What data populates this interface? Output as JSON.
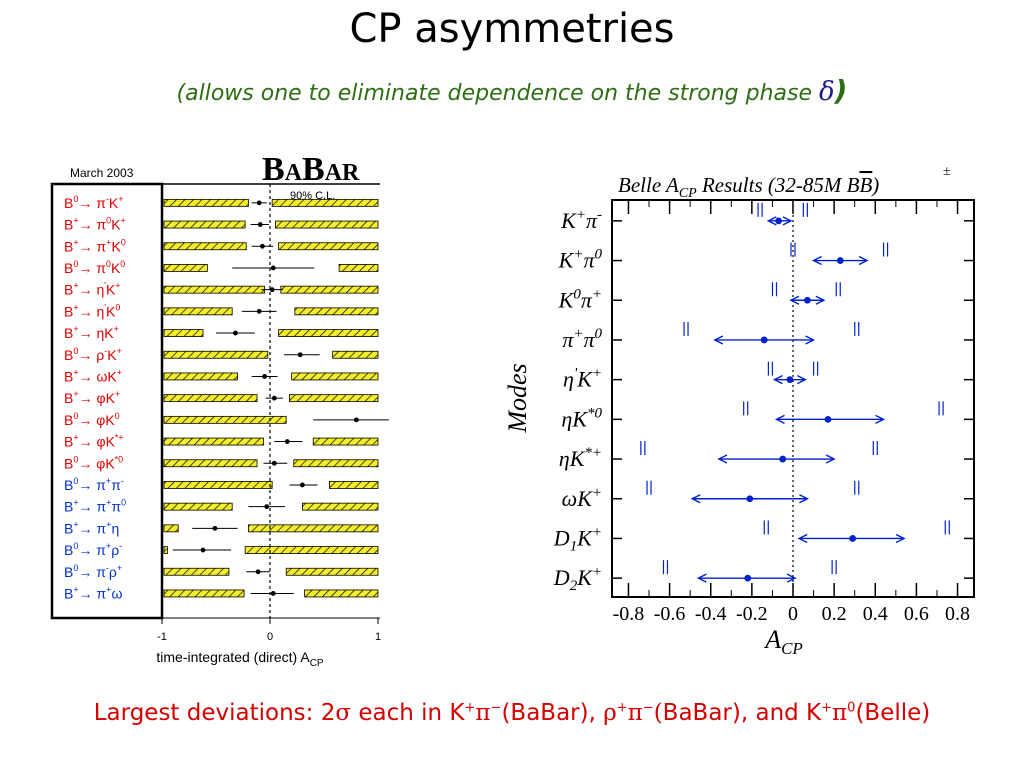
{
  "slide": {
    "title": "CP asymmetries",
    "subtitle_text": "(allows one to eliminate dependence on the strong phase ",
    "subtitle_symbol": "δ",
    "subtitle_close": ")",
    "footer": {
      "p1": "Largest deviations: 2",
      "sigma": "σ",
      "p2": " each in K",
      "p3": "(BaBar), ",
      "p4": "BaBar), and K",
      "p5": "(Belle)"
    }
  },
  "chart_data": [
    {
      "type": "scatter",
      "title": "",
      "header": "March 2003",
      "logo": "BABAR",
      "cl_label": "90% C.L.",
      "xlabel": "time-integrated (direct) A",
      "xlabel_sub": "CP",
      "xlim": [
        -1,
        1
      ],
      "xticks": [
        "-1",
        "0",
        "1"
      ],
      "modes": [
        {
          "pre": "B",
          "sup1": "0",
          "mid": "→ π",
          "sup2": "-",
          "post": "K",
          "sup3": "+",
          "color": "#e00000",
          "value": -0.1,
          "lo": -0.17,
          "hi": -0.03,
          "band_lo": -0.2,
          "band_hi": 0.02
        },
        {
          "pre": "B",
          "sup1": "+",
          "mid": "→ π",
          "sup2": "0",
          "post": "K",
          "sup3": "+",
          "color": "#e00000",
          "value": -0.09,
          "lo": -0.18,
          "hi": -0.01,
          "band_lo": -0.23,
          "band_hi": 0.05
        },
        {
          "pre": "B",
          "sup1": "+",
          "mid": "→ π",
          "sup2": "+",
          "post": "K",
          "sup3": "0",
          "color": "#e00000",
          "value": -0.07,
          "lo": -0.17,
          "hi": 0.03,
          "band_lo": -0.22,
          "band_hi": 0.08
        },
        {
          "pre": "B",
          "sup1": "0",
          "mid": "→ π",
          "sup2": "0",
          "post": "K",
          "sup3": "0",
          "color": "#e00000",
          "value": 0.03,
          "lo": -0.35,
          "hi": 0.41,
          "band_lo": -0.58,
          "band_hi": 0.64
        },
        {
          "pre": "B",
          "sup1": "+",
          "mid": "→ η",
          "sup2": "'",
          "post": "K",
          "sup3": "+",
          "color": "#e00000",
          "value": 0.02,
          "lo": -0.08,
          "hi": 0.12,
          "band_lo": -0.05,
          "band_hi": 0.1
        },
        {
          "pre": "B",
          "sup1": "+",
          "mid": "→ η",
          "sup2": "'",
          "post": "K",
          "sup3": "0",
          "color": "#e00000",
          "value": -0.1,
          "lo": -0.26,
          "hi": 0.06,
          "band_lo": -0.35,
          "band_hi": 0.23
        },
        {
          "pre": "B",
          "sup1": "+",
          "mid": "→ ηK",
          "sup2": "",
          "post": "",
          "sup3": "+",
          "color": "#e00000",
          "value": -0.32,
          "lo": -0.5,
          "hi": -0.14,
          "band_lo": -0.62,
          "band_hi": 0.08
        },
        {
          "pre": "B",
          "sup1": "0",
          "mid": "→ ρ",
          "sup2": "-",
          "post": "K",
          "sup3": "+",
          "color": "#e00000",
          "value": 0.28,
          "lo": 0.13,
          "hi": 0.46,
          "band_lo": -0.02,
          "band_hi": 0.58
        },
        {
          "pre": "B",
          "sup1": "+",
          "mid": "→ ωK",
          "sup2": "",
          "post": "",
          "sup3": "+",
          "color": "#e00000",
          "value": -0.05,
          "lo": -0.17,
          "hi": 0.07,
          "band_lo": -0.3,
          "band_hi": 0.2
        },
        {
          "pre": "B",
          "sup1": "+",
          "mid": "→ φK",
          "sup2": "",
          "post": "",
          "sup3": "+",
          "color": "#e00000",
          "value": 0.04,
          "lo": -0.04,
          "hi": 0.12,
          "band_lo": -0.12,
          "band_hi": 0.18
        },
        {
          "pre": "B",
          "sup1": "0",
          "mid": "→ φK",
          "sup2": "",
          "post": "",
          "sup3": "0",
          "color": "#e00000",
          "value": 0.8,
          "lo": 0.4,
          "hi": 1.2,
          "band_lo": 0.15,
          "band_hi": 1.3
        },
        {
          "pre": "B",
          "sup1": "+",
          "mid": "→ φK",
          "sup2": "",
          "post": "",
          "sup3": "*+",
          "color": "#e00000",
          "value": 0.16,
          "lo": 0.04,
          "hi": 0.3,
          "band_lo": -0.06,
          "band_hi": 0.4
        },
        {
          "pre": "B",
          "sup1": "0",
          "mid": "→ φK",
          "sup2": "",
          "post": "",
          "sup3": "*0",
          "color": "#e00000",
          "value": 0.04,
          "lo": -0.06,
          "hi": 0.16,
          "band_lo": -0.12,
          "band_hi": 0.22
        },
        {
          "pre": "B",
          "sup1": "0",
          "mid": "→ π",
          "sup2": "+",
          "post": "π",
          "sup3": "-",
          "color": "#0033cc",
          "value": 0.3,
          "lo": 0.18,
          "hi": 0.44,
          "band_lo": 0.02,
          "band_hi": 0.55
        },
        {
          "pre": "B",
          "sup1": "+",
          "mid": "→ π",
          "sup2": "+",
          "post": "π",
          "sup3": "0",
          "color": "#0033cc",
          "value": -0.03,
          "lo": -0.2,
          "hi": 0.14,
          "band_lo": -0.35,
          "band_hi": 0.3
        },
        {
          "pre": "B",
          "sup1": "+",
          "mid": "→ π",
          "sup2": "+",
          "post": "η",
          "sup3": "",
          "color": "#0033cc",
          "value": -0.51,
          "lo": -0.72,
          "hi": -0.3,
          "band_lo": -0.85,
          "band_hi": -0.2
        },
        {
          "pre": "B",
          "sup1": "0",
          "mid": "→ π",
          "sup2": "+",
          "post": "ρ",
          "sup3": "-",
          "color": "#0033cc",
          "value": -0.62,
          "lo": -0.9,
          "hi": -0.36,
          "band_lo": -0.95,
          "band_hi": -0.23
        },
        {
          "pre": "B",
          "sup1": "0",
          "mid": "→ π",
          "sup2": "-",
          "post": "ρ",
          "sup3": "+",
          "color": "#0033cc",
          "value": -0.11,
          "lo": -0.22,
          "hi": 0.0,
          "band_lo": -0.38,
          "band_hi": 0.15
        },
        {
          "pre": "B",
          "sup1": "+",
          "mid": "→ π",
          "sup2": "+",
          "post": "ω",
          "sup3": "",
          "color": "#0033cc",
          "value": 0.03,
          "lo": -0.18,
          "hi": 0.22,
          "band_lo": -0.24,
          "band_hi": 0.32
        }
      ]
    },
    {
      "type": "scatter",
      "title_pre": "Belle A",
      "title_sub": "CP",
      "title_post": " Results (32-85M B",
      "title_bbar": "B",
      "title_close": ")",
      "title_pm": "±",
      "ylabel": "Modes",
      "xlabel": "A",
      "xlabel_sub": "CP",
      "xlim": [
        -0.88,
        0.88
      ],
      "xticks": [
        "-0.8",
        "-0.6",
        "-0.4",
        "-0.2",
        "0",
        "0.2",
        "0.4",
        "0.6",
        "0.8"
      ],
      "xtick_values": [
        -0.8,
        -0.6,
        -0.4,
        -0.2,
        0,
        0.2,
        0.4,
        0.6,
        0.8
      ],
      "modes": [
        {
          "main": "K",
          "sup1": "+",
          "main2": "π",
          "sup2": "-",
          "sub1": "",
          "value": -0.07,
          "lo": -0.12,
          "hi": -0.01,
          "bar_lo": -0.16,
          "bar_hi": 0.06
        },
        {
          "main": "K",
          "sup1": "+",
          "main2": "π",
          "sup2": "0",
          "sub1": "",
          "value": 0.23,
          "lo": 0.1,
          "hi": 0.36,
          "bar_lo": 0.0,
          "bar_hi": 0.45
        },
        {
          "main": "K",
          "sup1": "0",
          "main2": "π",
          "sup2": "+",
          "sub1": "",
          "value": 0.07,
          "lo": -0.01,
          "hi": 0.15,
          "bar_lo": -0.09,
          "bar_hi": 0.22
        },
        {
          "main": "π",
          "sup1": "+",
          "main2": "π",
          "sup2": "0",
          "sub1": "",
          "value": -0.14,
          "lo": -0.38,
          "hi": 0.1,
          "bar_lo": -0.52,
          "bar_hi": 0.31
        },
        {
          "main": "η",
          "sup1": "'",
          "main2": "K",
          "sup2": "+",
          "sub1": "",
          "value": -0.015,
          "lo": -0.09,
          "hi": 0.06,
          "bar_lo": -0.11,
          "bar_hi": 0.11
        },
        {
          "main": "ηK",
          "sup1": "*0",
          "main2": "",
          "sup2": "",
          "sub1": "",
          "value": 0.17,
          "lo": -0.08,
          "hi": 0.44,
          "bar_lo": -0.23,
          "bar_hi": 0.72
        },
        {
          "main": "ηK",
          "sup1": "*+",
          "main2": "",
          "sup2": "",
          "sub1": "",
          "value": -0.05,
          "lo": -0.36,
          "hi": 0.2,
          "bar_lo": -0.73,
          "bar_hi": 0.4
        },
        {
          "main": "ωK",
          "sup1": "+",
          "main2": "",
          "sup2": "",
          "sub1": "",
          "value": -0.21,
          "lo": -0.49,
          "hi": 0.07,
          "bar_lo": -0.7,
          "bar_hi": 0.31
        },
        {
          "main": "D",
          "sup1": "+",
          "main2": "",
          "sup2": "",
          "sub1": "1",
          "post": "K",
          "value": 0.29,
          "lo": 0.03,
          "hi": 0.54,
          "bar_lo": -0.13,
          "bar_hi": 0.75
        },
        {
          "main": "D",
          "sup1": "+",
          "main2": "",
          "sup2": "",
          "sub1": "2",
          "post": "K",
          "value": -0.22,
          "lo": -0.46,
          "hi": 0.01,
          "bar_lo": -0.62,
          "bar_hi": 0.2
        }
      ]
    }
  ]
}
